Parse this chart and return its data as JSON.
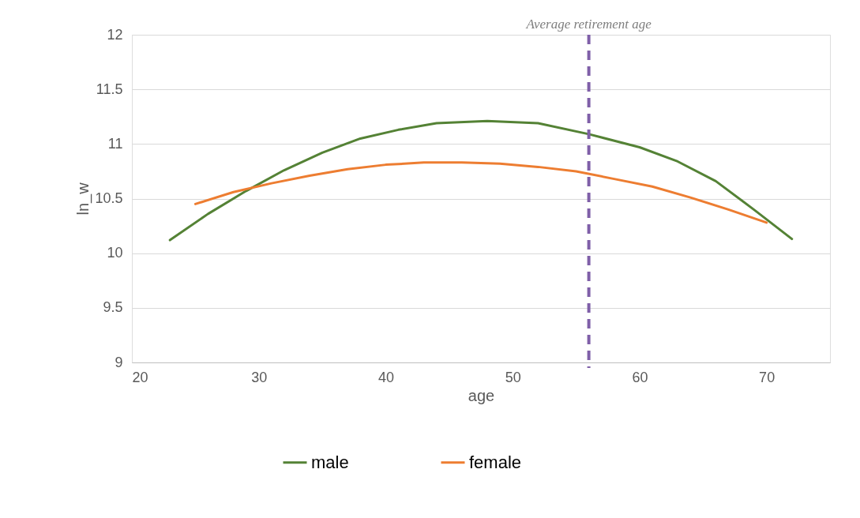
{
  "chart_data": {
    "type": "line",
    "xlabel": "age",
    "ylabel": "ln_w",
    "xlim": [
      20,
      75
    ],
    "xticks": [
      20,
      30,
      40,
      50,
      60,
      70
    ],
    "ylim": [
      9,
      12
    ],
    "yticks": [
      9,
      9.5,
      10,
      10.5,
      11,
      11.5,
      12
    ],
    "grid": "y",
    "legend": "bottom",
    "marker": "none",
    "line_style": "solid",
    "series": [
      {
        "name": "male",
        "color": "#548235",
        "x": [
          23,
          26,
          29,
          32,
          35,
          38,
          41,
          44,
          48,
          52,
          56,
          60,
          63,
          66,
          69,
          72
        ],
        "values": [
          10.12,
          10.36,
          10.57,
          10.76,
          10.92,
          11.05,
          11.13,
          11.19,
          11.21,
          11.19,
          11.09,
          10.97,
          10.84,
          10.66,
          10.4,
          10.13
        ]
      },
      {
        "name": "female",
        "color": "#ed7d31",
        "x": [
          25,
          28,
          31,
          34,
          37,
          40,
          43,
          46,
          49,
          52,
          55,
          58,
          61,
          64,
          67,
          70
        ],
        "values": [
          10.45,
          10.56,
          10.64,
          10.71,
          10.77,
          10.81,
          10.83,
          10.83,
          10.82,
          10.79,
          10.75,
          10.68,
          10.61,
          10.51,
          10.4,
          10.28
        ]
      }
    ],
    "ref_lines": [
      {
        "axis": "x",
        "value": 56,
        "label": "Average retirement age",
        "color": "#7f5fa8",
        "line_style": "dashed"
      }
    ]
  }
}
